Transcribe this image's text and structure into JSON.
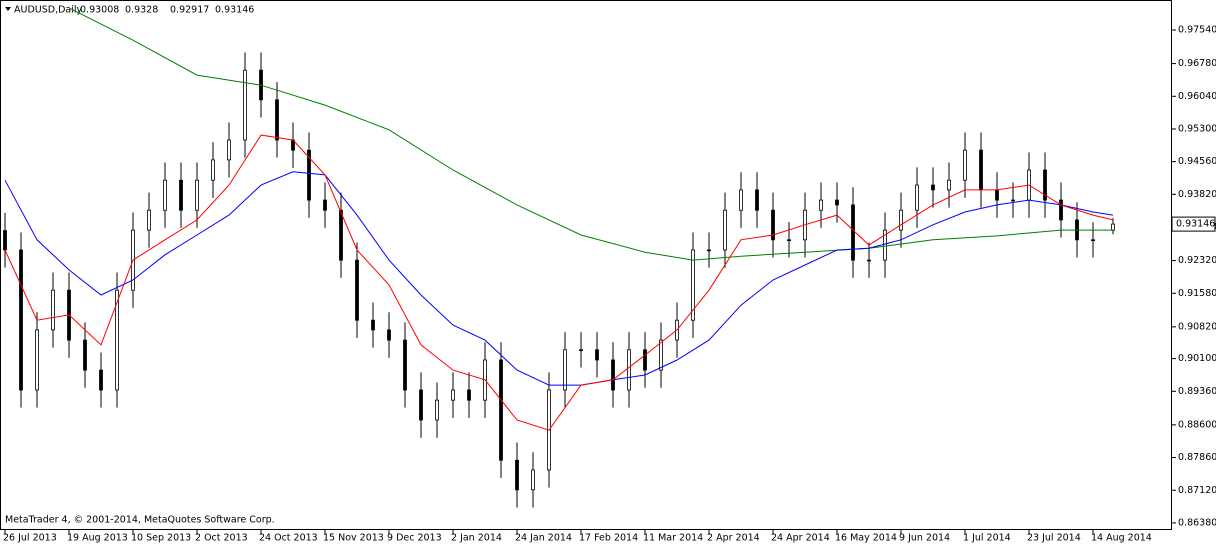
{
  "chart_data": {
    "type": "candlestick",
    "symbol": "AUDUSD,Daily",
    "footer": "MetaTrader 4, © 2001-2014, MetaQuotes Software Corp.",
    "xlim": [
      -1.25,
      291.75
    ],
    "ylim": [
      0.8622,
      0.9822
    ],
    "grid": false,
    "up_color": "#ffffff",
    "down_color": "#000000",
    "xticks": [
      {
        "value": 0,
        "label": "26 Jul 2013"
      },
      {
        "value": 16,
        "label": "19 Aug 2013"
      },
      {
        "value": 32,
        "label": "10 Sep 2013"
      },
      {
        "value": 48,
        "label": "2 Oct 2013"
      },
      {
        "value": 64,
        "label": "24 Oct 2013"
      },
      {
        "value": 80,
        "label": "15 Nov 2013"
      },
      {
        "value": 96,
        "label": "9 Dec 2013"
      },
      {
        "value": 112,
        "label": "2 Jan 2014"
      },
      {
        "value": 128,
        "label": "24 Jan 2014"
      },
      {
        "value": 144,
        "label": "17 Feb 2014"
      },
      {
        "value": 160,
        "label": "11 Mar 2014"
      },
      {
        "value": 176,
        "label": "2 Apr 2014"
      },
      {
        "value": 192,
        "label": "24 Apr 2014"
      },
      {
        "value": 208,
        "label": "16 May 2014"
      },
      {
        "value": 224,
        "label": "9 Jun 2014"
      },
      {
        "value": 240,
        "label": "1 Jul 2014"
      },
      {
        "value": 256,
        "label": "23 Jul 2014"
      },
      {
        "value": 272,
        "label": "14 Aug 2014"
      }
    ],
    "yticks": [
      {
        "value": 0.9754,
        "label": "0.97540"
      },
      {
        "value": 0.9678,
        "label": "0.96780"
      },
      {
        "value": 0.9604,
        "label": "0.96040"
      },
      {
        "value": 0.953,
        "label": "0.95300"
      },
      {
        "value": 0.9456,
        "label": "0.94560"
      },
      {
        "value": 0.9382,
        "label": "0.93820"
      },
      {
        "value": 0.9308,
        "label": "0.93080"
      },
      {
        "value": 0.9232,
        "label": "0.92320"
      },
      {
        "value": 0.9158,
        "label": "0.91580"
      },
      {
        "value": 0.9082,
        "label": "0.90820"
      },
      {
        "value": 0.901,
        "label": "0.90100"
      },
      {
        "value": 0.8936,
        "label": "0.89360"
      },
      {
        "value": 0.886,
        "label": "0.88600"
      },
      {
        "value": 0.8786,
        "label": "0.87860"
      },
      {
        "value": 0.8712,
        "label": "0.87120"
      },
      {
        "value": 0.8638,
        "label": "0.86380"
      }
    ],
    "ohlc": {
      "x": [
        0,
        4,
        8,
        12,
        16,
        20,
        24,
        28,
        32,
        36,
        40,
        44,
        48,
        52,
        56,
        60,
        64,
        68,
        72,
        76,
        80,
        84,
        88,
        92,
        96,
        100,
        104,
        108,
        112,
        116,
        120,
        124,
        128,
        132,
        136,
        140,
        144,
        148,
        152,
        156,
        160,
        164,
        168,
        172,
        176,
        180,
        184,
        188,
        192,
        196,
        200,
        204,
        208,
        212,
        216,
        220,
        224,
        228,
        232,
        236,
        240,
        244,
        248,
        252,
        256,
        260,
        264,
        268,
        272,
        277
      ],
      "open": [
        0.93,
        0.9256,
        0.8939,
        0.9075,
        0.9165,
        0.9052,
        0.8984,
        0.8939,
        0.9165,
        0.9301,
        0.9346,
        0.9414,
        0.9346,
        0.9414,
        0.946,
        0.9505,
        0.9663,
        0.9596,
        0.9505,
        0.9482,
        0.9369,
        0.9346,
        0.9233,
        0.9097,
        0.9075,
        0.9052,
        0.8939,
        0.8871,
        0.8916,
        0.8939,
        0.8916,
        0.9007,
        0.878,
        0.8713,
        0.8758,
        0.8939,
        0.903,
        0.903,
        0.9007,
        0.8939,
        0.903,
        0.8984,
        0.9052,
        0.9097,
        0.9256,
        0.9256,
        0.9346,
        0.9392,
        0.9346,
        0.9279,
        0.9279,
        0.9346,
        0.9369,
        0.9358,
        0.9233,
        0.9233,
        0.9301,
        0.9346,
        0.9403,
        0.9392,
        0.9414,
        0.9482,
        0.9392,
        0.9369,
        0.9369,
        0.9437,
        0.9369,
        0.9324,
        0.9279,
        0.93008
      ],
      "high": [
        0.934,
        0.9296,
        0.9115,
        0.9205,
        0.9205,
        0.9092,
        0.9024,
        0.9205,
        0.9341,
        0.9386,
        0.9454,
        0.9454,
        0.9454,
        0.95,
        0.9545,
        0.9703,
        0.9703,
        0.9636,
        0.9545,
        0.9522,
        0.9409,
        0.9386,
        0.9273,
        0.9137,
        0.9115,
        0.9092,
        0.8979,
        0.8956,
        0.8979,
        0.8979,
        0.9047,
        0.9047,
        0.882,
        0.8798,
        0.8979,
        0.907,
        0.907,
        0.907,
        0.9047,
        0.907,
        0.907,
        0.9092,
        0.9137,
        0.9296,
        0.9296,
        0.9386,
        0.9432,
        0.9432,
        0.9386,
        0.9319,
        0.9386,
        0.9409,
        0.9409,
        0.9398,
        0.9273,
        0.9341,
        0.9386,
        0.9443,
        0.9443,
        0.9454,
        0.9522,
        0.9522,
        0.9432,
        0.9409,
        0.9477,
        0.9477,
        0.9409,
        0.9364,
        0.9319,
        0.9328
      ],
      "low": [
        0.9216,
        0.8899,
        0.8899,
        0.9035,
        0.9012,
        0.8944,
        0.8899,
        0.8899,
        0.9125,
        0.9261,
        0.9306,
        0.9306,
        0.9306,
        0.9374,
        0.942,
        0.9465,
        0.9556,
        0.9465,
        0.9442,
        0.9329,
        0.9306,
        0.9193,
        0.9057,
        0.9035,
        0.9012,
        0.8899,
        0.8831,
        0.8831,
        0.8876,
        0.8876,
        0.8876,
        0.874,
        0.8673,
        0.8673,
        0.8718,
        0.8899,
        0.899,
        0.8967,
        0.8899,
        0.8899,
        0.8944,
        0.8944,
        0.9012,
        0.9057,
        0.9216,
        0.9216,
        0.9306,
        0.9306,
        0.9239,
        0.9239,
        0.9239,
        0.9306,
        0.9318,
        0.9193,
        0.9193,
        0.9193,
        0.9261,
        0.9306,
        0.9352,
        0.9352,
        0.9374,
        0.9352,
        0.9329,
        0.9329,
        0.9329,
        0.9329,
        0.9284,
        0.9239,
        0.9239,
        0.92917
      ],
      "close": [
        0.9256,
        0.8939,
        0.9075,
        0.9165,
        0.9052,
        0.8984,
        0.8939,
        0.9165,
        0.9301,
        0.9346,
        0.9414,
        0.9346,
        0.9414,
        0.946,
        0.9505,
        0.9663,
        0.9596,
        0.9505,
        0.9482,
        0.9369,
        0.9346,
        0.9233,
        0.9097,
        0.9075,
        0.9052,
        0.8939,
        0.8871,
        0.8916,
        0.8939,
        0.8916,
        0.9007,
        0.878,
        0.8713,
        0.8758,
        0.8939,
        0.903,
        0.903,
        0.9007,
        0.8939,
        0.903,
        0.8984,
        0.9052,
        0.9097,
        0.9256,
        0.9256,
        0.9346,
        0.9392,
        0.9346,
        0.9279,
        0.9279,
        0.9346,
        0.9369,
        0.9358,
        0.9233,
        0.9233,
        0.9301,
        0.9346,
        0.9403,
        0.9392,
        0.9414,
        0.9482,
        0.9392,
        0.9369,
        0.9369,
        0.9437,
        0.9369,
        0.9324,
        0.9279,
        0.9279,
        0.93146
      ]
    },
    "moving_averages": [
      {
        "color": "#008000",
        "x": [
          16,
          32,
          48,
          64,
          80,
          96,
          112,
          128,
          144,
          160,
          172,
          184,
          200,
          216,
          232,
          248,
          264,
          277
        ],
        "values": [
          0.9804,
          0.9731,
          0.9652,
          0.9629,
          0.9584,
          0.9528,
          0.9437,
          0.9358,
          0.929,
          0.9251,
          0.9233,
          0.9242,
          0.9251,
          0.926,
          0.9279,
          0.9288,
          0.9301,
          0.9301
        ]
      },
      {
        "color": "#0000ff",
        "x": [
          0,
          8,
          16,
          24,
          32,
          40,
          48,
          56,
          64,
          72,
          80,
          88,
          96,
          104,
          112,
          120,
          128,
          136,
          144,
          152,
          160,
          168,
          176,
          184,
          192,
          200,
          208,
          216,
          224,
          232,
          240,
          248,
          256,
          264,
          272,
          277
        ],
        "values": [
          0.9414,
          0.9279,
          0.9211,
          0.9154,
          0.9188,
          0.9245,
          0.929,
          0.9335,
          0.9403,
          0.9433,
          0.9426,
          0.9335,
          0.9233,
          0.9154,
          0.9086,
          0.9052,
          0.8984,
          0.895,
          0.895,
          0.8962,
          0.8973,
          0.9007,
          0.9052,
          0.9131,
          0.9188,
          0.9222,
          0.9256,
          0.926,
          0.9279,
          0.9313,
          0.9342,
          0.9358,
          0.9369,
          0.9358,
          0.9342,
          0.9335
        ]
      },
      {
        "color": "#ff0000",
        "x": [
          0,
          8,
          16,
          24,
          32,
          40,
          48,
          56,
          64,
          72,
          80,
          88,
          96,
          104,
          112,
          120,
          128,
          136,
          144,
          152,
          160,
          168,
          176,
          184,
          192,
          200,
          208,
          216,
          224,
          232,
          240,
          248,
          256,
          264,
          272,
          277
        ],
        "values": [
          0.9256,
          0.9097,
          0.9109,
          0.9041,
          0.9233,
          0.9279,
          0.9324,
          0.9403,
          0.9516,
          0.9505,
          0.9426,
          0.9256,
          0.9177,
          0.9041,
          0.8984,
          0.8962,
          0.8871,
          0.8848,
          0.895,
          0.8962,
          0.9018,
          0.9075,
          0.9165,
          0.9279,
          0.929,
          0.9313,
          0.9335,
          0.9267,
          0.9313,
          0.9358,
          0.9392,
          0.9392,
          0.9403,
          0.9358,
          0.9335,
          0.9324
        ]
      }
    ]
  }
}
